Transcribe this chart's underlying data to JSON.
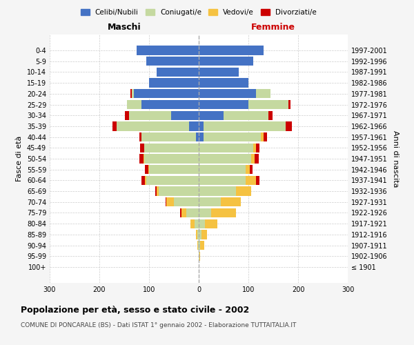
{
  "age_groups": [
    "100+",
    "95-99",
    "90-94",
    "85-89",
    "80-84",
    "75-79",
    "70-74",
    "65-69",
    "60-64",
    "55-59",
    "50-54",
    "45-49",
    "40-44",
    "35-39",
    "30-34",
    "25-29",
    "20-24",
    "15-19",
    "10-14",
    "5-9",
    "0-4"
  ],
  "birth_years": [
    "≤ 1901",
    "1902-1906",
    "1907-1911",
    "1912-1916",
    "1917-1921",
    "1922-1926",
    "1927-1931",
    "1932-1936",
    "1937-1941",
    "1942-1946",
    "1947-1951",
    "1952-1956",
    "1957-1961",
    "1962-1966",
    "1967-1971",
    "1972-1976",
    "1977-1981",
    "1982-1986",
    "1987-1991",
    "1992-1996",
    "1997-2001"
  ],
  "maschi": {
    "celibe": [
      0,
      0,
      0,
      0,
      0,
      0,
      0,
      0,
      0,
      0,
      0,
      0,
      5,
      20,
      55,
      115,
      130,
      100,
      85,
      105,
      125
    ],
    "coniugato": [
      0,
      0,
      1,
      3,
      8,
      25,
      50,
      80,
      105,
      100,
      110,
      110,
      110,
      145,
      85,
      30,
      5,
      0,
      0,
      0,
      0
    ],
    "vedovo": [
      0,
      0,
      2,
      3,
      8,
      10,
      15,
      5,
      3,
      2,
      1,
      0,
      0,
      0,
      0,
      0,
      0,
      0,
      0,
      0,
      0
    ],
    "divorziato": [
      0,
      0,
      0,
      0,
      0,
      2,
      2,
      2,
      7,
      7,
      9,
      8,
      5,
      8,
      8,
      0,
      3,
      0,
      0,
      0,
      0
    ]
  },
  "femmine": {
    "nubile": [
      0,
      0,
      0,
      0,
      0,
      0,
      0,
      0,
      0,
      0,
      0,
      0,
      10,
      10,
      50,
      100,
      115,
      100,
      80,
      110,
      130
    ],
    "coniugata": [
      0,
      1,
      3,
      5,
      12,
      25,
      45,
      75,
      95,
      95,
      105,
      110,
      115,
      165,
      90,
      80,
      30,
      0,
      0,
      0,
      0
    ],
    "vedova": [
      0,
      2,
      8,
      12,
      25,
      50,
      40,
      30,
      20,
      8,
      8,
      5,
      5,
      0,
      0,
      0,
      0,
      0,
      0,
      0,
      0
    ],
    "divorziata": [
      0,
      0,
      0,
      0,
      0,
      0,
      0,
      0,
      7,
      5,
      8,
      7,
      8,
      12,
      8,
      5,
      0,
      0,
      0,
      0,
      0
    ]
  },
  "colors": {
    "celibe": "#4472c4",
    "coniugato": "#c5d9a0",
    "vedovo": "#f5c242",
    "divorziato": "#cc0000"
  },
  "legend_labels": [
    "Celibi/Nubili",
    "Coniugati/e",
    "Vedovi/e",
    "Divorziati/e"
  ],
  "title": "Popolazione per età, sesso e stato civile - 2002",
  "subtitle": "COMUNE DI PONCARALE (BS) - Dati ISTAT 1° gennaio 2002 - Elaborazione TUTTAITALIA.IT",
  "xlabel_left": "Maschi",
  "xlabel_right": "Femmine",
  "ylabel_left": "Fasce di età",
  "ylabel_right": "Anni di nascita",
  "xlim": 300,
  "bg_color": "#f5f5f5",
  "plot_bg": "#ffffff"
}
